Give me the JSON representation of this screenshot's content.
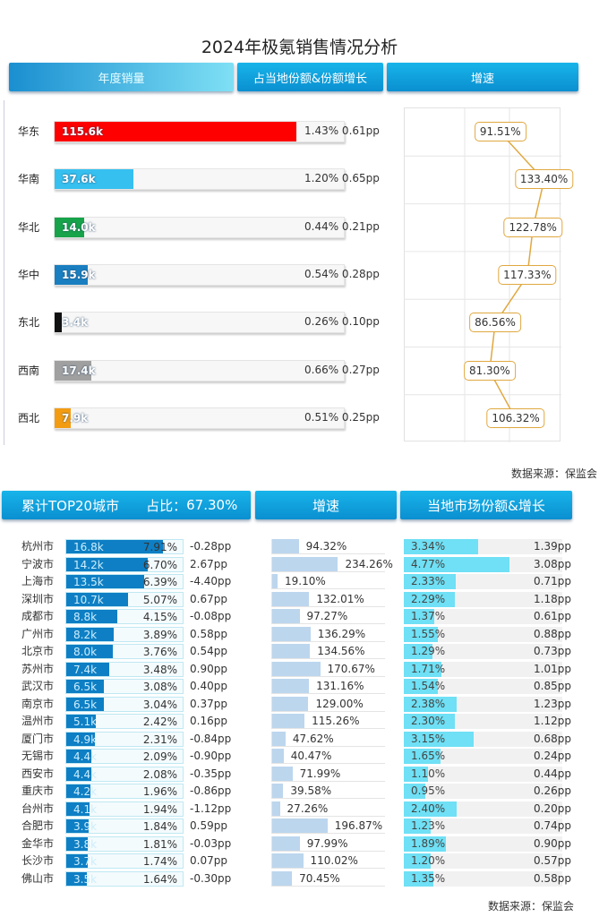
{
  "title": "2024年极氪销售情况分析",
  "top_tabs": [
    "年度销量",
    "占当地份额&份额增长",
    "增速"
  ],
  "source": "数据来源：保监会",
  "bottom_headers": {
    "cities": "累计TOP20城市",
    "share_label": "占比：",
    "share_value": "67.30%",
    "growth": "增速",
    "market": "当地市场份额&增长"
  },
  "chart_data": [
    {
      "type": "bar",
      "name": "年度销量",
      "xlim": [
        0,
        139
      ],
      "categories": [
        "华东",
        "华南",
        "华北",
        "华中",
        "东北",
        "西南",
        "西北"
      ],
      "values": [
        115.6,
        37.6,
        14.0,
        15.9,
        3.4,
        17.4,
        7.9
      ],
      "labels": [
        "115.6k",
        "37.6k",
        "14.0k",
        "15.9k",
        "3.4k",
        "17.4k",
        "7.9k"
      ],
      "colors": [
        "#ff0000",
        "#35c0f0",
        "#16a34a",
        "#1a7fc0",
        "#111111",
        "#a0a0a0",
        "#f39c12"
      ],
      "share": [
        "1.43%",
        "1.20%",
        "0.44%",
        "0.54%",
        "0.26%",
        "0.66%",
        "0.51%"
      ],
      "share_growth": [
        "0.61pp",
        "0.65pp",
        "0.21pp",
        "0.28pp",
        "0.10pp",
        "0.27pp",
        "0.25pp"
      ]
    },
    {
      "type": "line",
      "name": "增速",
      "xlim": [
        0,
        150
      ],
      "categories": [
        "华东",
        "华南",
        "华北",
        "华中",
        "东北",
        "西南",
        "西北"
      ],
      "values": [
        91.51,
        133.4,
        122.78,
        117.33,
        86.56,
        81.3,
        106.32
      ],
      "labels": [
        "91.51%",
        "133.40%",
        "122.78%",
        "117.33%",
        "86.56%",
        "81.30%",
        "106.32%"
      ]
    },
    {
      "type": "table",
      "name": "TOP20城市",
      "cities": [
        "杭州市",
        "宁波市",
        "上海市",
        "深圳市",
        "成都市",
        "广州市",
        "北京市",
        "苏州市",
        "武汉市",
        "南京市",
        "温州市",
        "厦门市",
        "无锡市",
        "西安市",
        "重庆市",
        "台州市",
        "合肥市",
        "金华市",
        "长沙市",
        "佛山市"
      ],
      "sales": [
        16.8,
        14.2,
        13.5,
        10.7,
        8.8,
        8.2,
        8.0,
        7.4,
        6.5,
        6.5,
        5.1,
        4.9,
        4.4,
        4.4,
        4.2,
        4.1,
        3.9,
        3.8,
        3.7,
        3.5
      ],
      "sales_labels": [
        "16.8k",
        "14.2k",
        "13.5k",
        "10.7k",
        "8.8k",
        "8.2k",
        "8.0k",
        "7.4k",
        "6.5k",
        "6.5k",
        "5.1k",
        "4.9k",
        "4.4k",
        "4.4k",
        "4.2k",
        "4.1k",
        "3.9k",
        "3.8k",
        "3.7k",
        "3.5k"
      ],
      "share": [
        "7.91%",
        "6.70%",
        "6.39%",
        "5.07%",
        "4.15%",
        "3.89%",
        "3.76%",
        "3.48%",
        "3.08%",
        "3.04%",
        "2.42%",
        "2.31%",
        "2.09%",
        "2.08%",
        "1.96%",
        "1.94%",
        "1.84%",
        "1.81%",
        "1.74%",
        "1.64%"
      ],
      "share_change": [
        "-0.28pp",
        "2.67pp",
        "-4.40pp",
        "0.67pp",
        "-0.08pp",
        "0.58pp",
        "0.54pp",
        "0.90pp",
        "0.40pp",
        "0.37pp",
        "0.16pp",
        "-0.84pp",
        "-0.90pp",
        "-0.35pp",
        "-0.86pp",
        "-1.12pp",
        "0.59pp",
        "-0.03pp",
        "0.07pp",
        "-0.30pp"
      ],
      "growth": [
        94.32,
        234.26,
        19.1,
        132.01,
        97.27,
        136.29,
        134.56,
        170.67,
        131.16,
        129.0,
        115.26,
        47.62,
        40.47,
        71.99,
        39.58,
        27.26,
        196.87,
        97.99,
        110.02,
        70.45
      ],
      "growth_labels": [
        "94.32%",
        "234.26%",
        "19.10%",
        "132.01%",
        "97.27%",
        "136.29%",
        "134.56%",
        "170.67%",
        "131.16%",
        "129.00%",
        "115.26%",
        "47.62%",
        "40.47%",
        "71.99%",
        "39.58%",
        "27.26%",
        "196.87%",
        "97.99%",
        "110.02%",
        "70.45%"
      ],
      "market_share": [
        3.34,
        4.77,
        2.33,
        2.29,
        1.37,
        1.55,
        1.29,
        1.71,
        1.54,
        2.38,
        2.3,
        3.15,
        1.65,
        1.1,
        0.95,
        2.4,
        1.23,
        1.89,
        1.2,
        1.35
      ],
      "market_share_labels": [
        "3.34%",
        "4.77%",
        "2.33%",
        "2.29%",
        "1.37%",
        "1.55%",
        "1.29%",
        "1.71%",
        "1.54%",
        "2.38%",
        "2.30%",
        "3.15%",
        "1.65%",
        "1.10%",
        "0.95%",
        "2.40%",
        "1.23%",
        "1.89%",
        "1.20%",
        "1.35%"
      ],
      "market_change": [
        "1.39pp",
        "3.08pp",
        "0.71pp",
        "1.18pp",
        "0.61pp",
        "0.88pp",
        "0.73pp",
        "1.01pp",
        "0.85pp",
        "1.23pp",
        "1.12pp",
        "0.68pp",
        "0.24pp",
        "0.44pp",
        "0.26pp",
        "0.20pp",
        "0.74pp",
        "0.90pp",
        "0.57pp",
        "0.58pp"
      ],
      "sales_xlim": [
        0,
        20.5
      ],
      "growth_xlim": [
        0,
        405
      ],
      "market_xlim": [
        0,
        7.15
      ],
      "colors": {
        "sales": "#0e7fc4",
        "growth": "#bcd6ee",
        "market": "#6fe0f5"
      }
    }
  ]
}
